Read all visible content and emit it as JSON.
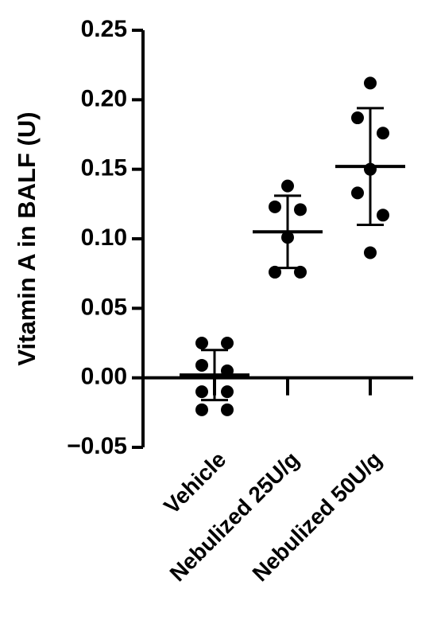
{
  "chart_data": {
    "type": "dot",
    "ylabel": "Vitamin  A in BALF  (U)",
    "categories": [
      "Vehicle",
      "Nebulized 25U/g",
      "Nebulized 50U/g"
    ],
    "points": [
      [
        0.025,
        0.025,
        0.009,
        0.005,
        -0.01,
        -0.01,
        -0.023,
        -0.023
      ],
      [
        0.138,
        0.123,
        0.121,
        0.101,
        0.076,
        0.076
      ],
      [
        0.212,
        0.187,
        0.176,
        0.15,
        0.133,
        0.117,
        0.09
      ]
    ],
    "means": [
      0.002,
      0.105,
      0.152
    ],
    "sd": [
      0.018,
      0.026,
      0.042
    ],
    "color": "#000000",
    "ylim": [
      -0.05,
      0.25
    ],
    "yticks": [
      {
        "value": -0.05,
        "label": "−0.05"
      },
      {
        "value": 0,
        "label": "0.00"
      },
      {
        "value": 0.05,
        "label": "0.05"
      },
      {
        "value": 0.1,
        "label": "0.10"
      },
      {
        "value": 0.15,
        "label": "0.15"
      },
      {
        "value": 0.2,
        "label": "0.20"
      },
      {
        "value": 0.25,
        "label": "0.25"
      }
    ]
  }
}
